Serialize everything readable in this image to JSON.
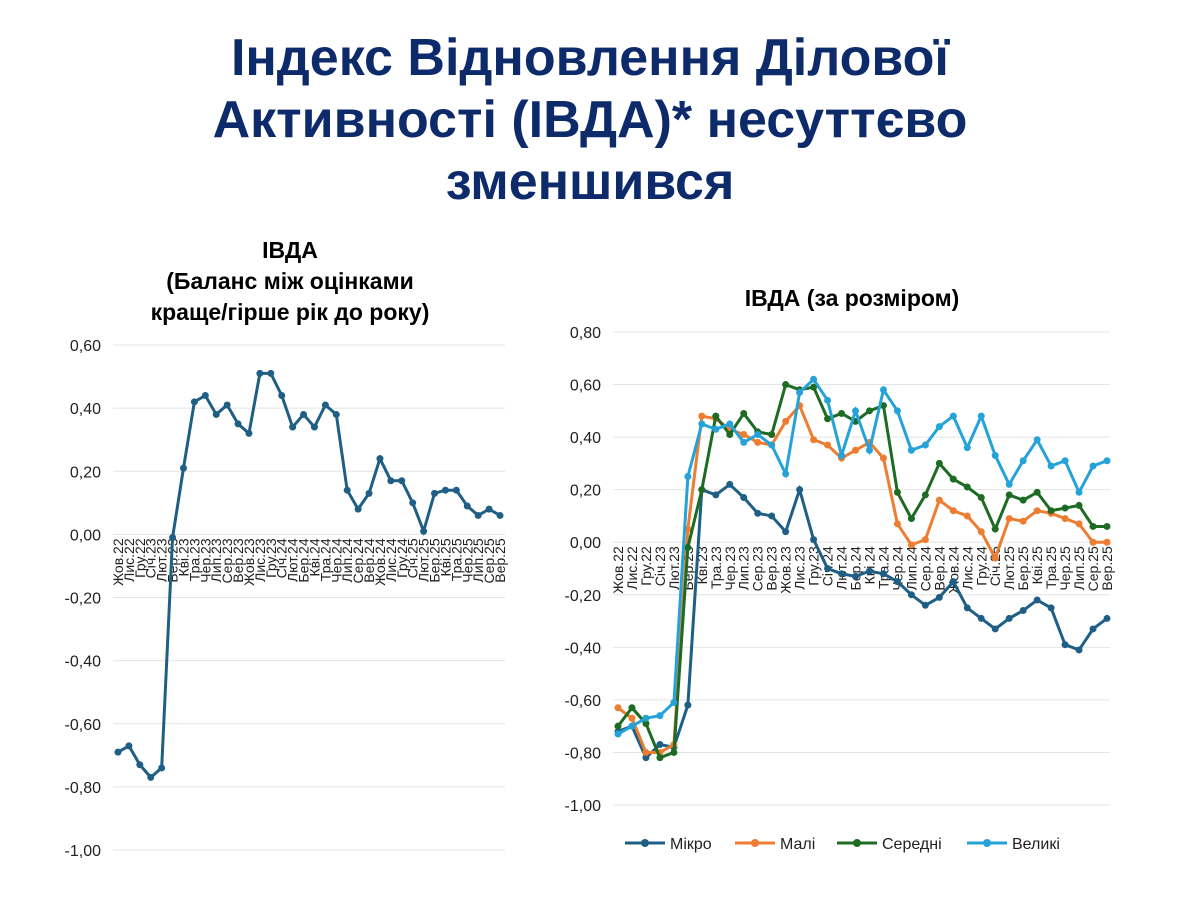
{
  "title": [
    "Індекс Відновлення Ділової",
    "Активності (ІВДА)* несуттєво",
    "зменшився"
  ],
  "chart_data": [
    {
      "type": "line",
      "title": [
        "ІВДА",
        "(Баланс між оцінками",
        "краще/гірше рік до року)"
      ],
      "categories": [
        "Жов.22",
        "Лис.22",
        "Гру.22",
        "Січ.23",
        "Лют.23",
        "Бер.23",
        "Кві.23",
        "Тра.23",
        "Чер.23",
        "Лип.23",
        "Сер.23",
        "Вер.23",
        "Жов.23",
        "Лис.23",
        "Гру.23",
        "Січ.24",
        "Лют.24",
        "Бер.24",
        "Кві.24",
        "Тра.24",
        "Чер.24",
        "Лип.24",
        "Сер.24",
        "Вер.24",
        "Жов.24",
        "Лис.24",
        "Гру.24",
        "Січ.25",
        "Лют.25",
        "Бер.25",
        "Кві.25",
        "Тра.25",
        "Чер.25",
        "Лип.25",
        "Сер.25",
        "Вер.25"
      ],
      "series": [
        {
          "name": "ІВДА",
          "color": "#1f5f86",
          "values": [
            -0.69,
            -0.67,
            -0.73,
            -0.77,
            -0.74,
            -0.01,
            0.21,
            0.42,
            0.44,
            0.38,
            0.41,
            0.35,
            0.32,
            0.51,
            0.51,
            0.44,
            0.34,
            0.38,
            0.34,
            0.41,
            0.38,
            0.14,
            0.08,
            0.13,
            0.24,
            0.17,
            0.17,
            0.1,
            0.01,
            0.13,
            0.14,
            0.14,
            0.09,
            0.06,
            0.08,
            0.06
          ]
        }
      ],
      "ylim": [
        -1,
        0.6
      ],
      "yticks": [
        {
          "value": -1,
          "label": "-1,00"
        },
        {
          "value": -0.8,
          "label": "-0,80"
        },
        {
          "value": -0.6,
          "label": "-0,60"
        },
        {
          "value": -0.4,
          "label": "-0,40"
        },
        {
          "value": -0.2,
          "label": "-0,20"
        },
        {
          "value": 0,
          "label": "0,00"
        },
        {
          "value": 0.2,
          "label": "0,20"
        },
        {
          "value": 0.4,
          "label": "0,40"
        },
        {
          "value": 0.6,
          "label": "0,60"
        }
      ],
      "grid": true,
      "legend": false
    },
    {
      "type": "line",
      "title": [
        "ІВДА (за розміром)"
      ],
      "categories": [
        "Жов.22",
        "Лис.22",
        "Гру.22",
        "Січ.23",
        "Лют.23",
        "Бер.23",
        "Кві.23",
        "Тра.23",
        "Чер.23",
        "Лип.23",
        "Сер.23",
        "Вер.23",
        "Жов.23",
        "Лис.23",
        "Гру.23",
        "Січ.24",
        "Лют.24",
        "Бер.24",
        "Кві.24",
        "Тра.24",
        "Чер.24",
        "Лип.24",
        "Сер.24",
        "Вер.24",
        "Жов.24",
        "Лис.24",
        "Гру.24",
        "Січ.25",
        "Лют.25",
        "Бер.25",
        "Кві.25",
        "Тра.25",
        "Чер.25",
        "Лип.25",
        "Сер.25",
        "Вер.25"
      ],
      "series": [
        {
          "name": "Мікро",
          "color": "#1f5f86",
          "values": [
            -0.72,
            -0.7,
            -0.82,
            -0.77,
            -0.78,
            -0.62,
            0.2,
            0.18,
            0.22,
            0.17,
            0.11,
            0.1,
            0.04,
            0.2,
            0.01,
            -0.1,
            -0.12,
            -0.13,
            -0.11,
            -0.12,
            -0.15,
            -0.2,
            -0.24,
            -0.21,
            -0.15,
            -0.25,
            -0.29,
            -0.33,
            -0.29,
            -0.26,
            -0.22,
            -0.25,
            -0.39,
            -0.41,
            -0.33,
            -0.29
          ]
        },
        {
          "name": "Малі",
          "color": "#ed7d31",
          "values": [
            -0.63,
            -0.67,
            -0.8,
            -0.8,
            -0.77,
            0.05,
            0.48,
            0.47,
            0.43,
            0.41,
            0.38,
            0.37,
            0.46,
            0.52,
            0.39,
            0.37,
            0.32,
            0.35,
            0.38,
            0.32,
            0.07,
            -0.01,
            0.01,
            0.16,
            0.12,
            0.1,
            0.04,
            -0.06,
            0.09,
            0.08,
            0.12,
            0.11,
            0.09,
            0.07,
            0.0,
            0.0
          ]
        },
        {
          "name": "Середні",
          "color": "#1e6b24",
          "values": [
            -0.7,
            -0.63,
            -0.69,
            -0.82,
            -0.8,
            -0.02,
            0.2,
            0.48,
            0.41,
            0.49,
            0.42,
            0.41,
            0.6,
            0.58,
            0.59,
            0.47,
            0.49,
            0.46,
            0.5,
            0.52,
            0.19,
            0.09,
            0.18,
            0.3,
            0.24,
            0.21,
            0.17,
            0.05,
            0.18,
            0.16,
            0.19,
            0.12,
            0.13,
            0.14,
            0.06,
            0.06
          ]
        },
        {
          "name": "Великі",
          "color": "#25a3d8",
          "values": [
            -0.73,
            -0.7,
            -0.67,
            -0.66,
            -0.61,
            0.25,
            0.45,
            0.43,
            0.45,
            0.38,
            0.41,
            0.37,
            0.26,
            0.57,
            0.62,
            0.54,
            0.33,
            0.5,
            0.35,
            0.58,
            0.5,
            0.35,
            0.37,
            0.44,
            0.48,
            0.36,
            0.48,
            0.33,
            0.22,
            0.31,
            0.39,
            0.29,
            0.31,
            0.19,
            0.29,
            0.31
          ]
        }
      ],
      "ylim": [
        -1,
        0.8
      ],
      "yticks": [
        {
          "value": -1,
          "label": "-1,00"
        },
        {
          "value": -0.8,
          "label": "-0,80"
        },
        {
          "value": -0.6,
          "label": "-0,60"
        },
        {
          "value": -0.4,
          "label": "-0,40"
        },
        {
          "value": -0.2,
          "label": "-0,20"
        },
        {
          "value": 0,
          "label": "0,00"
        },
        {
          "value": 0.2,
          "label": "0,20"
        },
        {
          "value": 0.4,
          "label": "0,40"
        },
        {
          "value": 0.6,
          "label": "0,60"
        },
        {
          "value": 0.8,
          "label": "0,80"
        }
      ],
      "grid": true,
      "legend": "bottom"
    }
  ]
}
